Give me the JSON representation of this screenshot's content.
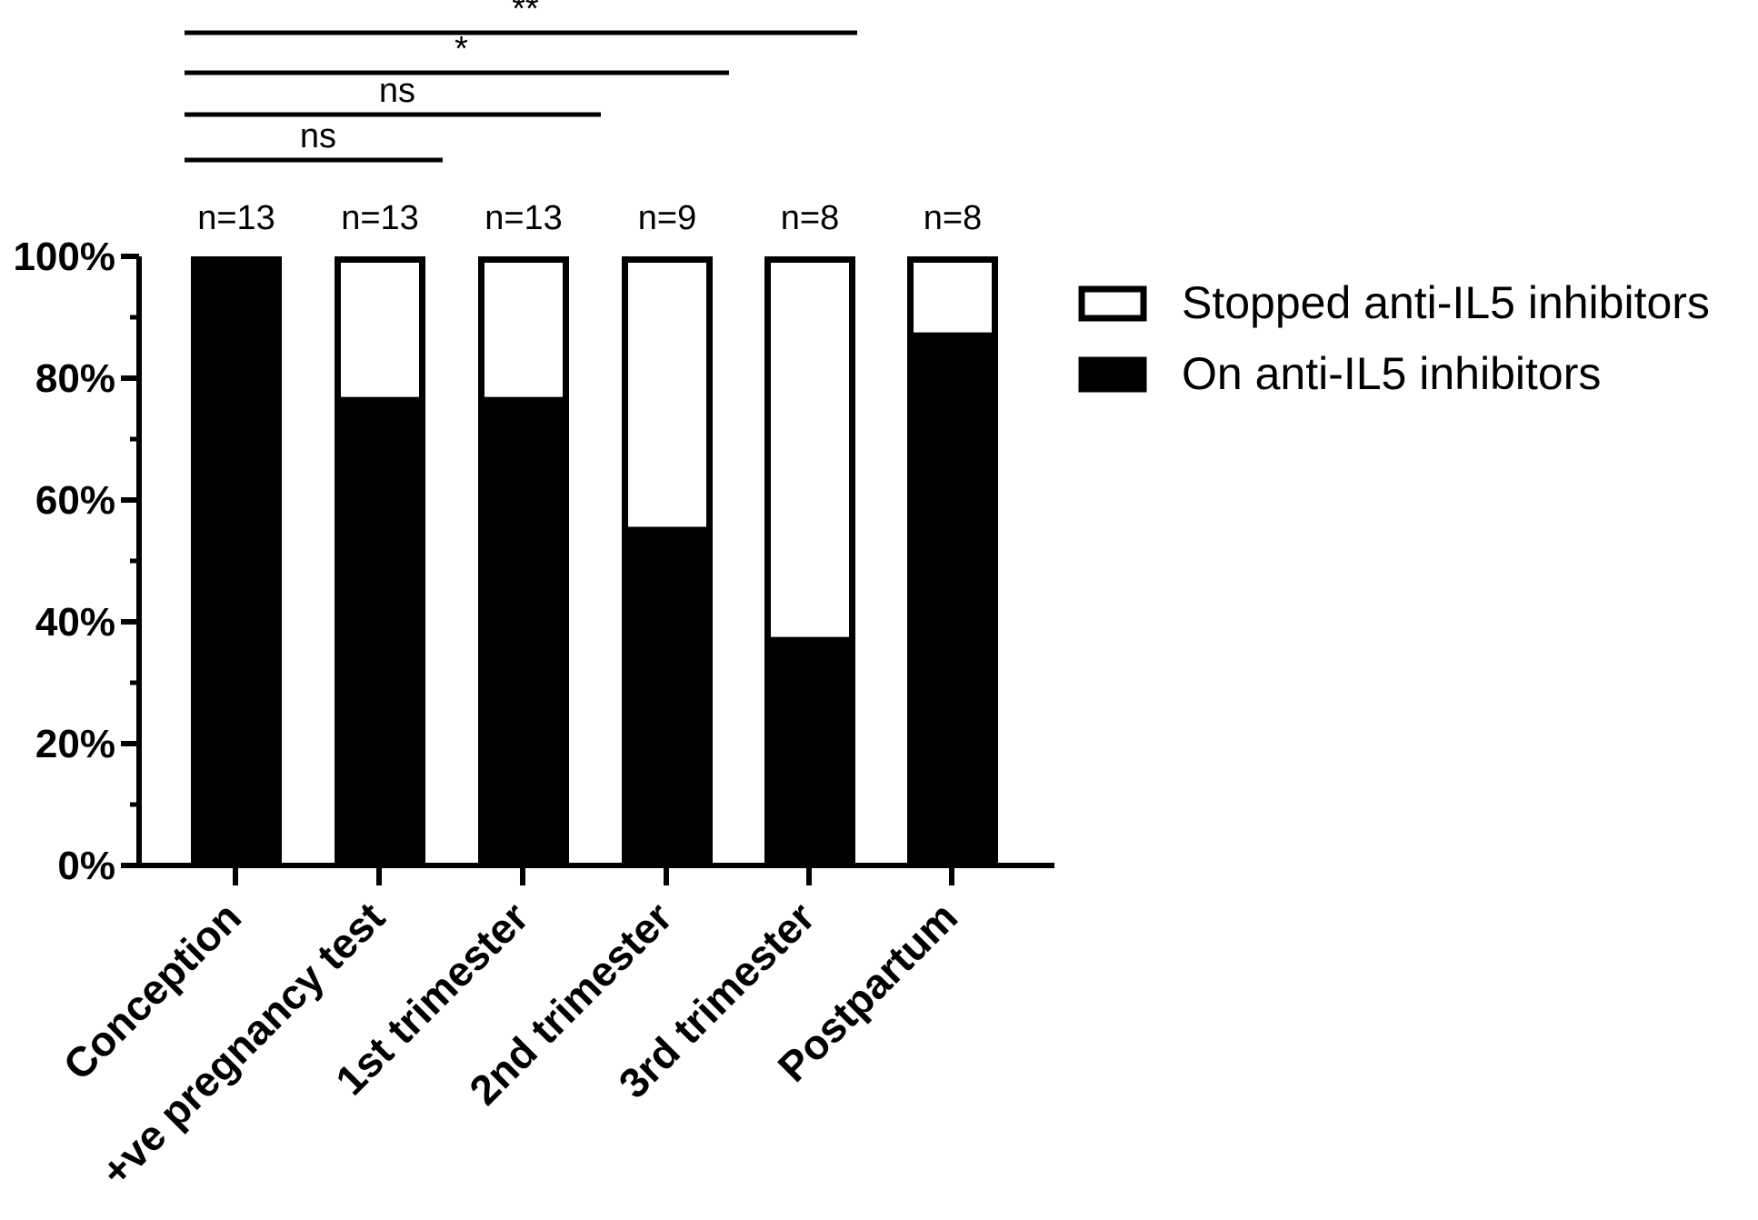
{
  "chart_data": {
    "type": "bar",
    "stacked": true,
    "categories": [
      "Conception",
      "+ve pregnancy test",
      "1st trimester",
      "2nd trimester",
      "3rd trimester",
      "Postpartum"
    ],
    "series": [
      {
        "name": "On anti-IL5 inhibitors",
        "values": [
          100,
          76.9,
          76.9,
          55.6,
          37.5,
          87.5
        ],
        "color": "#000000"
      },
      {
        "name": "Stopped anti-IL5 inhibitors",
        "values": [
          0,
          23.1,
          23.1,
          44.4,
          62.5,
          12.5
        ],
        "color": "#ffffff"
      }
    ],
    "n_labels": [
      "n=13",
      "n=13",
      "n=13",
      "n=9",
      "n=8",
      "n=8"
    ],
    "yticks": [
      "0%",
      "20%",
      "40%",
      "60%",
      "80%",
      "100%"
    ],
    "ylim": [
      0,
      100
    ],
    "title": "",
    "xlabel": "",
    "ylabel": "",
    "legend_position": "right",
    "comparisons": [
      {
        "from": 0,
        "to": 1,
        "label": "ns"
      },
      {
        "from": 0,
        "to": 2,
        "label": "ns"
      },
      {
        "from": 0,
        "to": 3,
        "label": "*"
      },
      {
        "from": 0,
        "to": 4,
        "label": "**"
      }
    ]
  }
}
